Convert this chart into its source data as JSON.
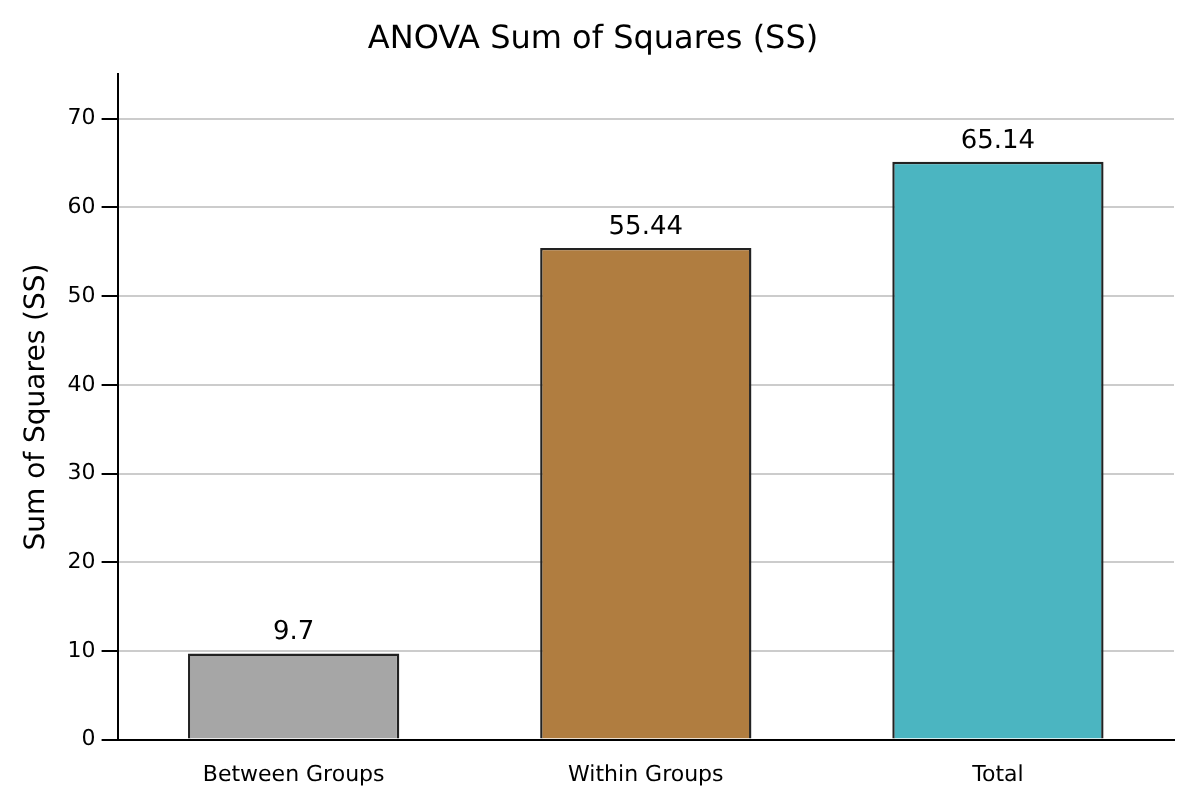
{
  "chart_data": {
    "type": "bar",
    "title": "ANOVA Sum of Squares (SS)",
    "ylabel": "Sum of Squares (SS)",
    "categories": [
      "Between Groups",
      "Within Groups",
      "Total"
    ],
    "values": [
      9.7,
      55.44,
      65.14
    ],
    "colors": [
      "#a6a6a6",
      "#b07d40",
      "#4bb5c1"
    ],
    "ylim": [
      0,
      75
    ],
    "yticks": [
      0,
      10,
      20,
      30,
      40,
      50,
      60,
      70
    ],
    "grid": "y",
    "data_labels": true
  }
}
